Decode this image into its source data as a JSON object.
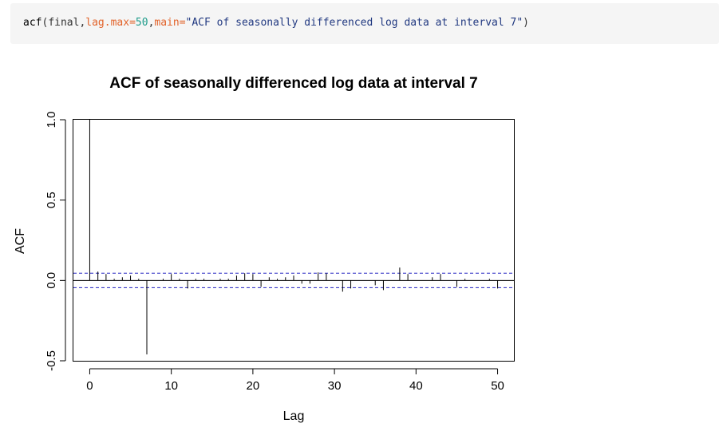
{
  "code": {
    "fn": "acf",
    "open": "(",
    "arg1": "final,",
    "arg2_name": "lag.max=",
    "arg2_value": "50",
    "comma": ",",
    "arg3_name": "main=",
    "arg3_value": "\"ACF of seasonally differenced log data at interval 7\"",
    "close": ")"
  },
  "colors": {
    "code_background": "#f5f5f5",
    "confidence_band": "#2020c0",
    "spikes": "#000000"
  },
  "chart_data": {
    "type": "bar",
    "title": "ACF of seasonally differenced log data at interval 7",
    "xlabel": "Lag",
    "ylabel": "ACF",
    "xlim": [
      -2,
      52
    ],
    "ylim": [
      -0.5,
      1.0
    ],
    "x_ticks": [
      0,
      10,
      20,
      30,
      40,
      50
    ],
    "x_tick_labels": [
      "0",
      "10",
      "20",
      "30",
      "40",
      "50"
    ],
    "y_ticks": [
      -0.5,
      0.0,
      0.5,
      1.0
    ],
    "y_tick_labels": [
      "-0.5",
      "0.0",
      "0.5",
      "1.0"
    ],
    "confidence_bounds": [
      0.045,
      -0.045
    ],
    "lags": [
      0,
      1,
      2,
      3,
      4,
      5,
      6,
      7,
      8,
      9,
      10,
      11,
      12,
      13,
      14,
      15,
      16,
      17,
      18,
      19,
      20,
      21,
      22,
      23,
      24,
      25,
      26,
      27,
      28,
      29,
      30,
      31,
      32,
      33,
      34,
      35,
      36,
      37,
      38,
      39,
      40,
      41,
      42,
      43,
      44,
      45,
      46,
      47,
      48,
      49,
      50
    ],
    "values": [
      1.0,
      0.055,
      0.04,
      0.01,
      0.02,
      0.03,
      0.01,
      -0.46,
      0.0,
      0.01,
      0.04,
      0.01,
      -0.05,
      0.01,
      0.01,
      0.0,
      0.01,
      0.01,
      0.03,
      0.045,
      0.04,
      -0.04,
      0.02,
      0.01,
      0.02,
      0.03,
      -0.02,
      -0.02,
      0.05,
      0.045,
      0.0,
      -0.07,
      -0.05,
      0.0,
      0.0,
      -0.03,
      -0.06,
      0.0,
      0.08,
      0.04,
      0.0,
      0.0,
      0.02,
      0.04,
      0.0,
      -0.04,
      0.01,
      0.0,
      0.0,
      0.01,
      -0.05
    ]
  }
}
